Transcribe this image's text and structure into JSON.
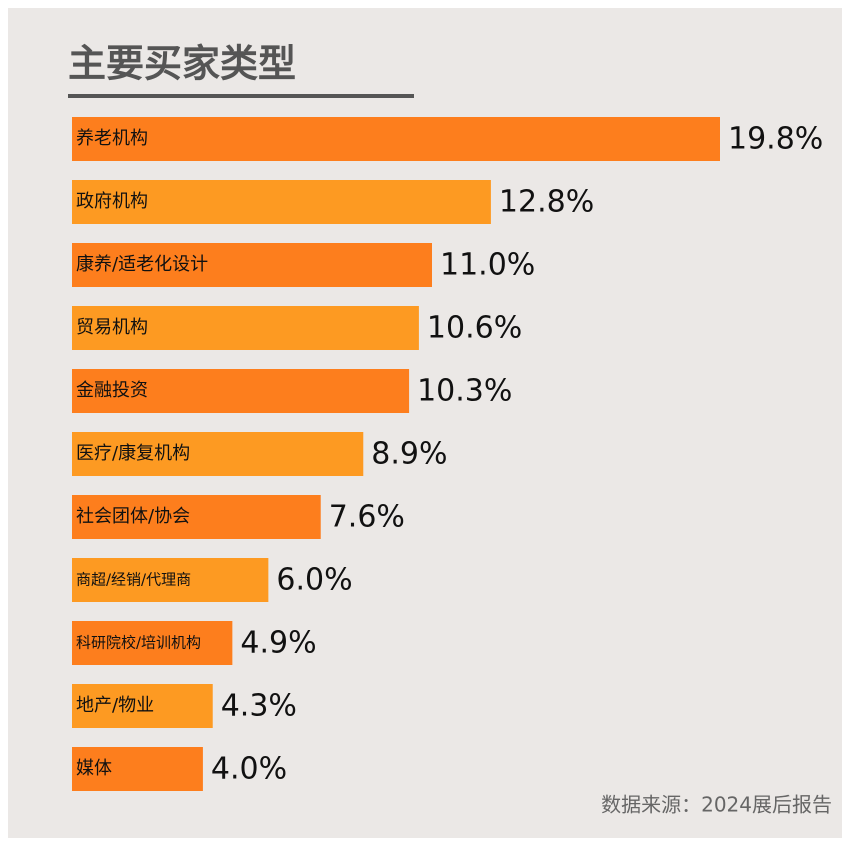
{
  "chart_data": {
    "type": "bar",
    "orientation": "horizontal",
    "title": "主要买家类型",
    "categories": [
      "养老机构",
      "政府机构",
      "康养/适老化设计",
      "贸易机构",
      "金融投资",
      "医疗/康复机构",
      "社会团体/协会",
      "商超/经销/代理商",
      "科研院校/培训机构",
      "地产/物业",
      "媒体"
    ],
    "values": [
      19.8,
      12.8,
      11.0,
      10.6,
      10.3,
      8.9,
      7.6,
      6.0,
      4.9,
      4.3,
      4.0
    ],
    "value_labels": [
      "19.8%",
      "12.8%",
      "11.0%",
      "10.6%",
      "10.3%",
      "8.9%",
      "7.6%",
      "6.0%",
      "4.9%",
      "4.3%",
      "4.0%"
    ],
    "colors": [
      "#fd7e1d",
      "#fd9a22",
      "#fd7e1d",
      "#fd9a22",
      "#fd7e1d",
      "#fd9a22",
      "#fd7e1d",
      "#fd9a22",
      "#fd7e1d",
      "#fd9a22",
      "#fd7e1d"
    ],
    "source": "数据来源：2024展后报告"
  }
}
